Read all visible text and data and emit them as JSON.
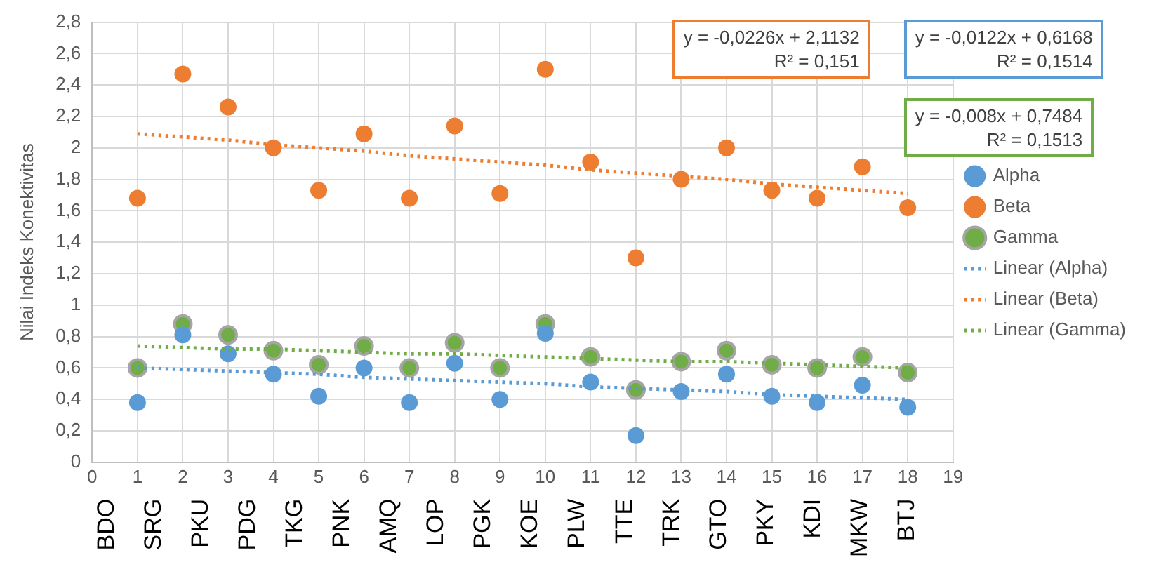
{
  "chart_data": {
    "type": "scatter",
    "ylabel": "Nilai Indeks Konektivitas",
    "x": [
      1,
      2,
      3,
      4,
      5,
      6,
      7,
      8,
      9,
      10,
      11,
      12,
      13,
      14,
      15,
      16,
      17,
      18
    ],
    "xlim": [
      0,
      19
    ],
    "xticks": [
      0,
      1,
      2,
      3,
      4,
      5,
      6,
      7,
      8,
      9,
      10,
      11,
      12,
      13,
      14,
      15,
      16,
      17,
      18,
      19
    ],
    "ylim": [
      0,
      2.8
    ],
    "yticks": [
      {
        "value": 0,
        "label": "0"
      },
      {
        "value": 0.2,
        "label": "0,2"
      },
      {
        "value": 0.4,
        "label": "0,4"
      },
      {
        "value": 0.6,
        "label": "0,6"
      },
      {
        "value": 0.8,
        "label": "0,8"
      },
      {
        "value": 1,
        "label": "1"
      },
      {
        "value": 1.2,
        "label": "1,2"
      },
      {
        "value": 1.4,
        "label": "1,4"
      },
      {
        "value": 1.6,
        "label": "1,6"
      },
      {
        "value": 1.8,
        "label": "1,8"
      },
      {
        "value": 2,
        "label": "2"
      },
      {
        "value": 2.2,
        "label": "2,2"
      },
      {
        "value": 2.4,
        "label": "2,4"
      },
      {
        "value": 2.6,
        "label": "2,6"
      },
      {
        "value": 2.8,
        "label": "2,8"
      }
    ],
    "grid": true,
    "legend": "right",
    "marker": "circle",
    "series": [
      {
        "name": "Alpha",
        "color": "#5b9bd5",
        "values": [
          0.38,
          0.81,
          0.69,
          0.56,
          0.42,
          0.6,
          0.38,
          0.63,
          0.4,
          0.82,
          0.51,
          0.17,
          0.45,
          0.56,
          0.42,
          0.38,
          0.49,
          0.35
        ]
      },
      {
        "name": "Beta",
        "color": "#ed7d31",
        "values": [
          1.68,
          2.47,
          2.26,
          2.0,
          1.73,
          2.09,
          1.68,
          2.14,
          1.71,
          2.5,
          1.91,
          1.3,
          1.8,
          2.0,
          1.73,
          1.68,
          1.88,
          1.62
        ]
      },
      {
        "name": "Gamma",
        "color": "#70ad47",
        "values": [
          0.6,
          0.88,
          0.81,
          0.71,
          0.62,
          0.74,
          0.6,
          0.76,
          0.6,
          0.88,
          0.67,
          0.46,
          0.64,
          0.71,
          0.62,
          0.6,
          0.67,
          0.57
        ]
      },
      {
        "name": "Linear (Alpha)",
        "type": "line",
        "color": "#5b9bd5",
        "line_style": "dotted",
        "marker": "none",
        "values": [
          0.6,
          0.59,
          0.58,
          0.57,
          0.56,
          0.54,
          0.53,
          0.52,
          0.51,
          0.5,
          0.48,
          0.47,
          0.46,
          0.45,
          0.43,
          0.42,
          0.41,
          0.4
        ]
      },
      {
        "name": "Linear (Beta)",
        "type": "line",
        "color": "#ed7d31",
        "line_style": "dotted",
        "marker": "none",
        "values": [
          2.09,
          2.07,
          2.05,
          2.02,
          2.0,
          1.98,
          1.95,
          1.93,
          1.91,
          1.89,
          1.86,
          1.84,
          1.82,
          1.8,
          1.77,
          1.75,
          1.73,
          1.71
        ]
      },
      {
        "name": "Linear (Gamma)",
        "type": "line",
        "color": "#70ad47",
        "line_style": "dotted",
        "marker": "none",
        "values": [
          0.74,
          0.73,
          0.72,
          0.72,
          0.71,
          0.7,
          0.69,
          0.69,
          0.68,
          0.67,
          0.66,
          0.65,
          0.64,
          0.64,
          0.63,
          0.62,
          0.61,
          0.6
        ]
      }
    ],
    "annotations": [
      "y = -0,0226x + 2,1132\nR² = 0,151",
      "y = -0,0122x + 0,6168\nR² = 0,1514",
      "y = -0,008x + 0,7484\nR² = 0,1513",
      "BDO",
      "SRG",
      "PKU",
      "PDG",
      "TKG",
      "PNK",
      "AMQ",
      "LOP",
      "PGK",
      "KOE",
      "PLW",
      "TTE",
      "TRK",
      "GTO",
      "PKY",
      "KDI",
      "MKW",
      "BTJ"
    ]
  }
}
